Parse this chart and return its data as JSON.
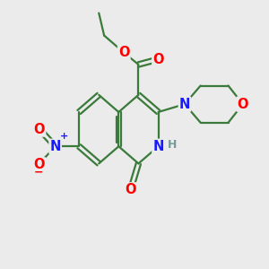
{
  "bg_color": "#ebebeb",
  "bond_color": "#3a7a3a",
  "bond_width": 1.6,
  "atom_colors": {
    "C": "#3a7a3a",
    "N": "#1a1aff",
    "O": "#ff0000",
    "H": "#7a9a9a"
  },
  "font_size_atom": 10.5,
  "font_size_small": 9,
  "xlim": [
    0,
    10
  ],
  "ylim": [
    0,
    10
  ]
}
